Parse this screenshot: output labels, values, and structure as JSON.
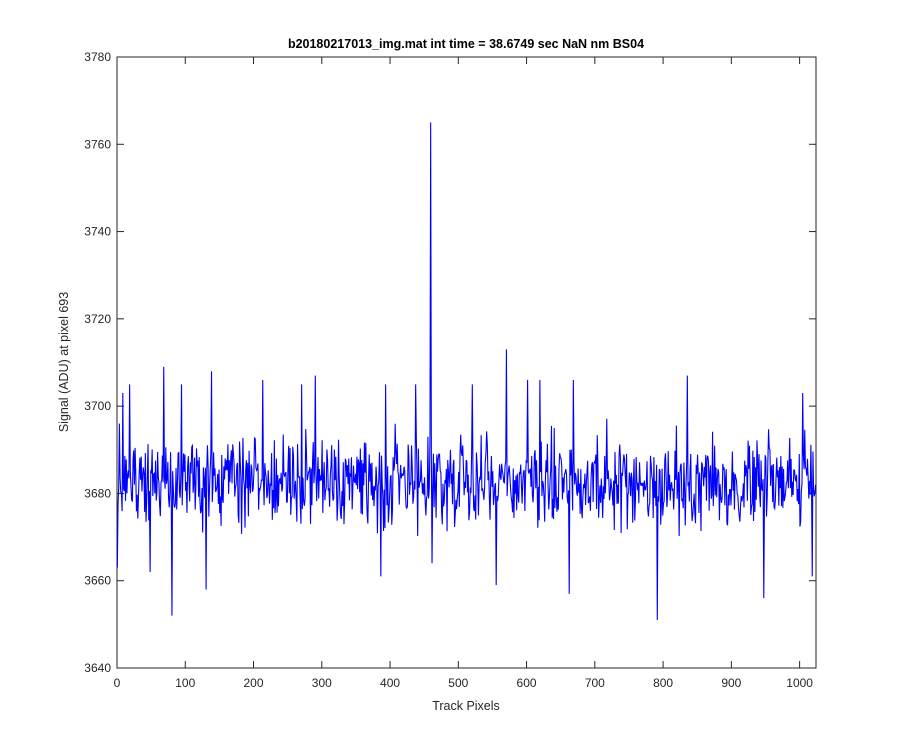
{
  "chart_data": {
    "type": "line",
    "title": "b20180217013_img.mat int time = 38.6749 sec  NaN nm BS04",
    "xlabel": "Track Pixels",
    "ylabel": "Signal (ADU) at pixel 693",
    "xlim": [
      0,
      1024
    ],
    "ylim": [
      3640,
      3780
    ],
    "xticks": [
      0,
      100,
      200,
      300,
      400,
      500,
      600,
      700,
      800,
      900,
      1000
    ],
    "yticks": [
      3640,
      3660,
      3680,
      3700,
      3720,
      3740,
      3760,
      3780
    ],
    "grid": false,
    "legend": "none",
    "line_color": "#0000ff",
    "series": [
      {
        "count": 1024,
        "baseline": 3683,
        "noise_halfrange": 11,
        "seed": 20180217,
        "features": [
          {
            "x": 0,
            "y": 3663
          },
          {
            "x": 3,
            "y": 3696
          },
          {
            "x": 8,
            "y": 3703
          },
          {
            "x": 18,
            "y": 3705
          },
          {
            "x": 48,
            "y": 3662
          },
          {
            "x": 68,
            "y": 3709
          },
          {
            "x": 80,
            "y": 3652
          },
          {
            "x": 94,
            "y": 3705
          },
          {
            "x": 130,
            "y": 3658
          },
          {
            "x": 138,
            "y": 3708
          },
          {
            "x": 213,
            "y": 3706
          },
          {
            "x": 270,
            "y": 3705
          },
          {
            "x": 290,
            "y": 3707
          },
          {
            "x": 386,
            "y": 3661
          },
          {
            "x": 393,
            "y": 3705
          },
          {
            "x": 437,
            "y": 3705
          },
          {
            "x": 459,
            "y": 3765
          },
          {
            "x": 461,
            "y": 3664
          },
          {
            "x": 520,
            "y": 3705
          },
          {
            "x": 555,
            "y": 3659
          },
          {
            "x": 570,
            "y": 3713
          },
          {
            "x": 601,
            "y": 3706
          },
          {
            "x": 619,
            "y": 3706
          },
          {
            "x": 662,
            "y": 3657
          },
          {
            "x": 668,
            "y": 3706
          },
          {
            "x": 791,
            "y": 3651
          },
          {
            "x": 835,
            "y": 3707
          },
          {
            "x": 947,
            "y": 3656
          },
          {
            "x": 1004,
            "y": 3703
          },
          {
            "x": 1018,
            "y": 3661
          },
          {
            "x": 1023,
            "y": 3682
          }
        ]
      }
    ]
  }
}
